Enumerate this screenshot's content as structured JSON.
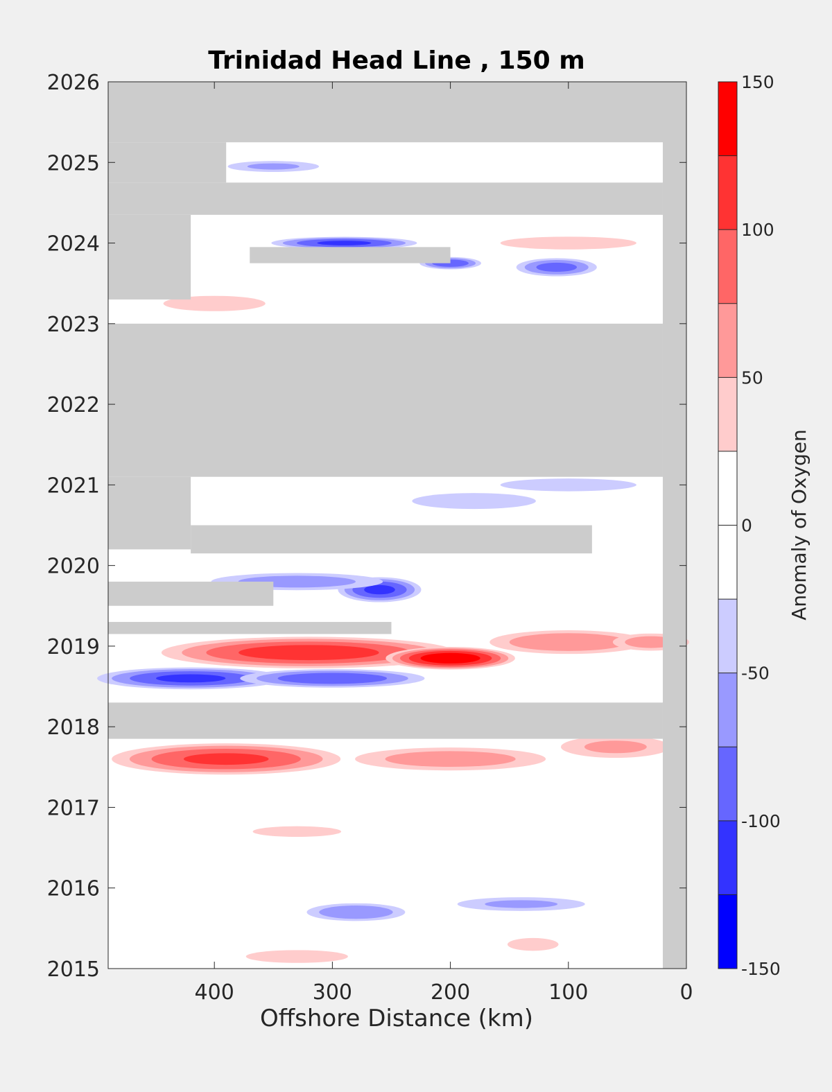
{
  "chart_data": {
    "type": "heatmap",
    "title": "Trinidad Head Line , 150 m",
    "xlabel": "Offshore Distance (km)",
    "ylabel": "",
    "x_reversed": true,
    "xlim": [
      490,
      0
    ],
    "ylim": [
      2015,
      2026
    ],
    "xticks": [
      400,
      300,
      200,
      100,
      0
    ],
    "yticks": [
      2015,
      2016,
      2017,
      2018,
      2019,
      2020,
      2021,
      2022,
      2023,
      2024,
      2025,
      2026
    ],
    "colorbar": {
      "label": "Anomaly of Oxygen",
      "range": [
        -150,
        150
      ],
      "levels": [
        -150,
        -125,
        -100,
        -75,
        -50,
        -25,
        0,
        25,
        50,
        75,
        100,
        125,
        150
      ],
      "ticks": [
        -150,
        -100,
        -50,
        0,
        50,
        100,
        150
      ],
      "colors": [
        "#0000ff",
        "#3333ff",
        "#6666ff",
        "#9999ff",
        "#ccccff",
        "#ffffff",
        "#ffffff",
        "#ffcccc",
        "#ff9999",
        "#ff6666",
        "#ff3333",
        "#ff0000"
      ]
    },
    "missing_color": "#cccccc",
    "missing_bands": [
      {
        "y": [
          2025.25,
          2026
        ],
        "x": [
          490,
          0
        ]
      },
      {
        "y": [
          2024.35,
          2024.75
        ],
        "x": [
          490,
          20
        ]
      },
      {
        "y": [
          2024.75,
          2025.25
        ],
        "x": [
          490,
          390
        ]
      },
      {
        "y": [
          2023.3,
          2024.35
        ],
        "x": [
          490,
          420
        ]
      },
      {
        "y": [
          2023.75,
          2023.95
        ],
        "x": [
          370,
          200
        ]
      },
      {
        "y": [
          2021.1,
          2023.0
        ],
        "x": [
          490,
          20
        ]
      },
      {
        "y": [
          2020.2,
          2021.1
        ],
        "x": [
          490,
          420
        ]
      },
      {
        "y": [
          2020.15,
          2020.5
        ],
        "x": [
          420,
          80
        ]
      },
      {
        "y": [
          2019.15,
          2019.3
        ],
        "x": [
          490,
          250
        ]
      },
      {
        "y": [
          2019.5,
          2019.8
        ],
        "x": [
          490,
          350
        ]
      },
      {
        "y": [
          2017.85,
          2018.3
        ],
        "x": [
          490,
          20
        ]
      },
      {
        "y": [
          2015,
          2026
        ],
        "x": [
          20,
          0
        ]
      }
    ],
    "anomaly_features": [
      {
        "x": 320,
        "y": 2018.92,
        "value": 110,
        "sx": 140,
        "sy": 0.1
      },
      {
        "x": 200,
        "y": 2018.85,
        "value": 140,
        "sx": 60,
        "sy": 0.07
      },
      {
        "x": 100,
        "y": 2019.05,
        "value": 70,
        "sx": 80,
        "sy": 0.08
      },
      {
        "x": 30,
        "y": 2019.05,
        "value": 60,
        "sx": 40,
        "sy": 0.06
      },
      {
        "x": 390,
        "y": 2017.6,
        "value": 100,
        "sx": 110,
        "sy": 0.1
      },
      {
        "x": 200,
        "y": 2017.6,
        "value": 60,
        "sx": 100,
        "sy": 0.08
      },
      {
        "x": 60,
        "y": 2017.75,
        "value": 50,
        "sx": 60,
        "sy": 0.08
      },
      {
        "x": 420,
        "y": 2018.6,
        "value": -100,
        "sx": 90,
        "sy": 0.07
      },
      {
        "x": 300,
        "y": 2018.6,
        "value": -90,
        "sx": 90,
        "sy": 0.06
      },
      {
        "x": 260,
        "y": 2019.7,
        "value": -100,
        "sx": 40,
        "sy": 0.08
      },
      {
        "x": 330,
        "y": 2019.8,
        "value": -60,
        "sx": 90,
        "sy": 0.06
      },
      {
        "x": 110,
        "y": 2023.7,
        "value": -80,
        "sx": 40,
        "sy": 0.06
      },
      {
        "x": 290,
        "y": 2024.0,
        "value": -100,
        "sx": 70,
        "sy": 0.04
      },
      {
        "x": 200,
        "y": 2023.75,
        "value": -90,
        "sx": 30,
        "sy": 0.04
      },
      {
        "x": 400,
        "y": 2023.25,
        "value": 40,
        "sx": 60,
        "sy": 0.06
      },
      {
        "x": 280,
        "y": 2015.7,
        "value": -70,
        "sx": 50,
        "sy": 0.06
      },
      {
        "x": 140,
        "y": 2015.8,
        "value": -50,
        "sx": 70,
        "sy": 0.05
      },
      {
        "x": 100,
        "y": 2024.0,
        "value": 40,
        "sx": 80,
        "sy": 0.05
      },
      {
        "x": 350,
        "y": 2024.95,
        "value": -50,
        "sx": 50,
        "sy": 0.04
      },
      {
        "x": 100,
        "y": 2021.0,
        "value": -40,
        "sx": 80,
        "sy": 0.05
      },
      {
        "x": 180,
        "y": 2020.8,
        "value": -45,
        "sx": 70,
        "sy": 0.06
      },
      {
        "x": 330,
        "y": 2016.7,
        "value": 45,
        "sx": 50,
        "sy": 0.04
      },
      {
        "x": 130,
        "y": 2015.3,
        "value": 40,
        "sx": 30,
        "sy": 0.05
      },
      {
        "x": 330,
        "y": 2015.15,
        "value": 40,
        "sx": 60,
        "sy": 0.05
      }
    ]
  }
}
